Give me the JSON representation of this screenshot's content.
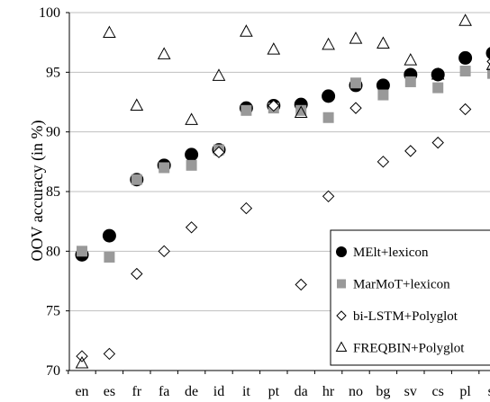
{
  "chart_data": {
    "type": "scatter",
    "ylabel": "OOV accuracy (in %)",
    "xlabel": "",
    "title": "",
    "ylim": [
      70,
      100
    ],
    "yticks": [
      70,
      75,
      80,
      85,
      90,
      95,
      100
    ],
    "grid": "horizontal",
    "legend_position": "bottom-right",
    "categories": [
      "en",
      "es",
      "fr",
      "fa",
      "de",
      "id",
      "it",
      "pt",
      "da",
      "hr",
      "no",
      "bg",
      "sv",
      "cs",
      "pl",
      "sl"
    ],
    "series": [
      {
        "name": "MElt+lexicon",
        "marker": "filled-circle",
        "color": "#000000",
        "values": [
          79.7,
          81.3,
          86.0,
          87.2,
          88.1,
          88.5,
          92.0,
          92.2,
          92.3,
          93.0,
          93.9,
          93.9,
          94.8,
          94.8,
          96.2,
          96.6
        ]
      },
      {
        "name": "MarMoT+lexicon",
        "marker": "filled-square",
        "color": "#999999",
        "values": [
          80.0,
          79.5,
          86.0,
          87.0,
          87.2,
          88.5,
          91.8,
          92.0,
          91.8,
          91.2,
          94.1,
          93.1,
          94.2,
          93.7,
          95.1,
          94.9
        ]
      },
      {
        "name": "bi-LSTM+Polyglot",
        "marker": "open-diamond",
        "color": "#000000",
        "values": [
          71.2,
          71.4,
          78.1,
          80.0,
          82.0,
          88.3,
          83.6,
          92.2,
          77.2,
          84.6,
          92.0,
          87.5,
          88.4,
          89.1,
          91.9,
          95.9
        ]
      },
      {
        "name": "FREQBIN+Polyglot",
        "marker": "open-triangle",
        "color": "#000000",
        "values": [
          70.6,
          98.3,
          92.2,
          96.5,
          91.0,
          94.7,
          98.4,
          96.9,
          91.6,
          97.3,
          97.8,
          97.4,
          96.0,
          94.8,
          99.3,
          95.6
        ]
      }
    ]
  }
}
